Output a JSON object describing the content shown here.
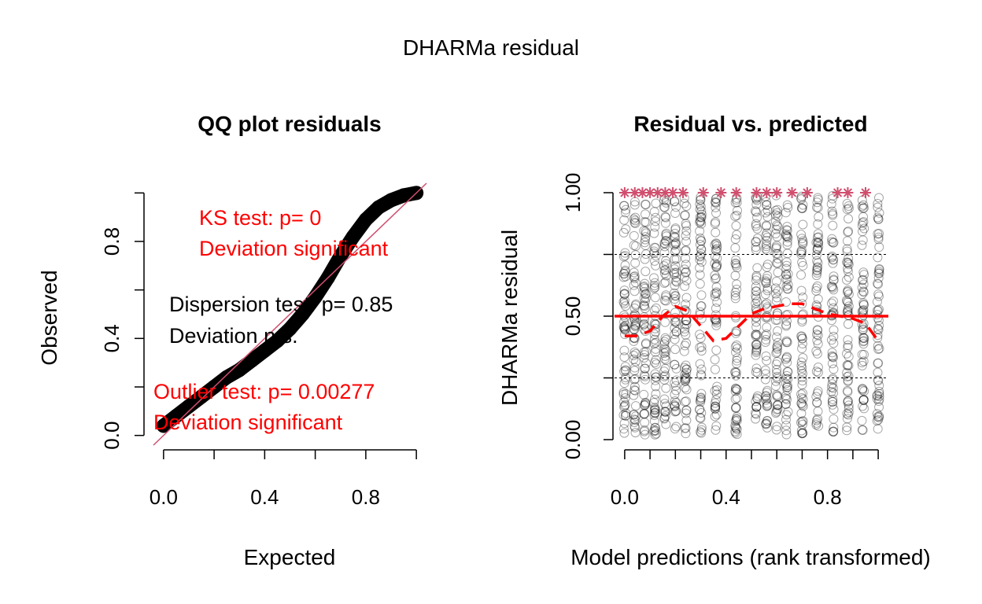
{
  "figure_title": "DHARMa residual",
  "chart_data": [
    {
      "type": "scatter",
      "title": "QQ plot residuals",
      "xlabel": "Expected",
      "ylabel": "Observed",
      "xlim": [
        -0.04,
        1.04
      ],
      "ylim": [
        -0.04,
        1.04
      ],
      "x_ticks": [
        "0.0",
        "0.4",
        "0.8"
      ],
      "x_tick_values": [
        0.0,
        0.4,
        0.8
      ],
      "x_minor_ticks": [
        0.0,
        0.2,
        0.4,
        0.6,
        0.8,
        1.0
      ],
      "y_ticks": [
        "0.0",
        "0.4",
        "0.8"
      ],
      "y_tick_values": [
        0.0,
        0.4,
        0.8
      ],
      "y_minor_ticks": [
        0.0,
        0.2,
        0.4,
        0.6,
        0.8,
        1.0
      ],
      "series": [
        {
          "x": [
            0.0,
            0.05,
            0.1,
            0.15,
            0.2,
            0.25,
            0.3,
            0.35,
            0.4,
            0.45,
            0.5,
            0.55,
            0.6,
            0.65,
            0.7,
            0.75,
            0.8,
            0.85,
            0.9,
            0.95,
            1.0
          ],
          "y": [
            0.04,
            0.08,
            0.12,
            0.16,
            0.2,
            0.24,
            0.27,
            0.31,
            0.35,
            0.39,
            0.44,
            0.5,
            0.57,
            0.65,
            0.74,
            0.82,
            0.89,
            0.94,
            0.97,
            0.99,
            1.0
          ]
        }
      ],
      "reference_line": {
        "slope": 1,
        "intercept": 0,
        "color": "#d04f6e"
      },
      "annotations": [
        {
          "id": "ks_test",
          "text": "KS test: p= 0",
          "color": "#ff0000"
        },
        {
          "id": "ks_dev",
          "text": "Deviation  significant",
          "color": "#ff0000"
        },
        {
          "id": "disp_test",
          "text": "Dispersion test: p= 0.85",
          "color": "#000000"
        },
        {
          "id": "disp_dev",
          "text": "Deviation  n.s.",
          "color": "#000000"
        },
        {
          "id": "out_test",
          "text": "Outlier test: p= 0.00277",
          "color": "#ff0000"
        },
        {
          "id": "out_dev",
          "text": "Deviation  significant",
          "color": "#ff0000"
        }
      ]
    },
    {
      "type": "scatter",
      "title": "Residual vs. predicted",
      "xlabel": "Model predictions (rank transformed)",
      "ylabel": "DHARMa residual",
      "xlim": [
        -0.04,
        1.04
      ],
      "ylim": [
        0.0,
        1.0
      ],
      "x_ticks": [
        "0.0",
        "0.4",
        "0.8"
      ],
      "x_tick_values": [
        0.0,
        0.4,
        0.8
      ],
      "x_minor_ticks": [
        0.0,
        0.1,
        0.2,
        0.3,
        0.4,
        0.5,
        0.6,
        0.7,
        0.8,
        0.9,
        1.0
      ],
      "y_ticks": [
        "0.00",
        "0.50",
        "1.00"
      ],
      "y_tick_values": [
        0.0,
        0.5,
        1.0
      ],
      "y_minor_ticks": [
        0.0,
        0.25,
        0.5,
        0.75,
        1.0
      ],
      "prediction_columns": [
        0.0,
        0.04,
        0.08,
        0.12,
        0.16,
        0.2,
        0.24,
        0.3,
        0.36,
        0.44,
        0.52,
        0.56,
        0.6,
        0.64,
        0.7,
        0.76,
        0.82,
        0.88,
        0.94,
        1.0
      ],
      "outlier_points": {
        "x": [
          0.0,
          0.04,
          0.07,
          0.1,
          0.13,
          0.16,
          0.19,
          0.23,
          0.31,
          0.38,
          0.44,
          0.52,
          0.56,
          0.6,
          0.66,
          0.72,
          0.84,
          0.88,
          0.95
        ],
        "y": 1.0,
        "color": "#d04f6e",
        "marker": "asterisk"
      },
      "quantile_lines": [
        0.25,
        0.5,
        0.75
      ],
      "median_smooth": {
        "x": [
          0.0,
          0.05,
          0.1,
          0.15,
          0.2,
          0.25,
          0.3,
          0.35,
          0.4,
          0.45,
          0.5,
          0.55,
          0.6,
          0.65,
          0.7,
          0.75,
          0.8,
          0.85,
          0.9,
          0.95,
          1.0
        ],
        "y": [
          0.42,
          0.42,
          0.44,
          0.5,
          0.54,
          0.52,
          0.46,
          0.4,
          0.41,
          0.46,
          0.51,
          0.53,
          0.54,
          0.55,
          0.55,
          0.53,
          0.51,
          0.5,
          0.49,
          0.47,
          0.4
        ],
        "color": "#ff0000"
      },
      "reference_line": {
        "y": 0.5,
        "color": "#ff0000"
      }
    }
  ]
}
